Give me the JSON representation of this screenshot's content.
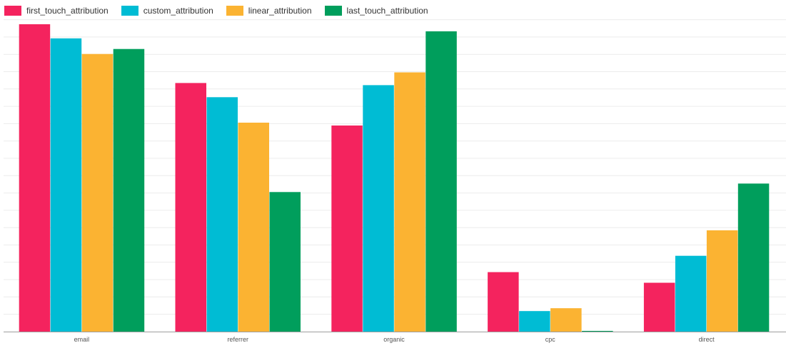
{
  "chart_data": {
    "type": "bar",
    "categories": [
      "email",
      "referrer",
      "organic",
      "cpc",
      "direct"
    ],
    "series": [
      {
        "name": "first_touch_attribution",
        "color": "#f4235e",
        "values": [
          434,
          351,
          291,
          84,
          69
        ]
      },
      {
        "name": "custom_attribution",
        "color": "#00bcd4",
        "values": [
          414,
          331,
          348,
          29,
          107
        ]
      },
      {
        "name": "linear_attribution",
        "color": "#fbb332",
        "values": [
          392,
          295,
          366,
          33,
          143
        ]
      },
      {
        "name": "last_touch_attribution",
        "color": "#009e5c",
        "values": [
          399,
          197,
          424,
          1,
          209
        ]
      }
    ],
    "ylim": [
      0,
      440
    ],
    "grid": true,
    "legend": "top-left"
  }
}
